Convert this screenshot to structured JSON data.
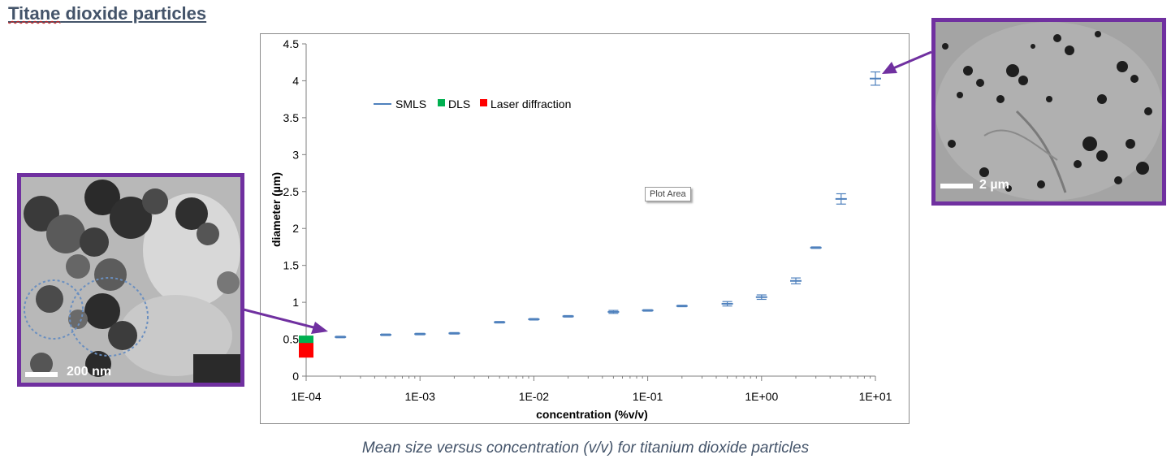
{
  "page": {
    "title_word1": "Titane",
    "title_word2": "dioxide particles",
    "caption": "Mean size versus concentration (v/v) for titanium dioxide particles",
    "tooltip": "Plot Area",
    "accent_color": "#7030a0"
  },
  "images": {
    "left_scale": "200 nm",
    "right_scale": "2 µm"
  },
  "chart_data": {
    "type": "scatter",
    "title": "",
    "xlabel": "concentration (%v/v)",
    "ylabel": "diameter (µm)",
    "x_scale": "log",
    "xlim": [
      0.0001,
      10
    ],
    "ylim": [
      0,
      4.5
    ],
    "x_ticks": [
      "1E-04",
      "1E-03",
      "1E-02",
      "1E-01",
      "1E+00",
      "1E+01"
    ],
    "y_ticks": [
      "0",
      "0.5",
      "1",
      "1.5",
      "2",
      "2.5",
      "3",
      "3.5",
      "4",
      "4.5"
    ],
    "grid": false,
    "legend_position": "top-left",
    "legend": [
      "SMLS",
      "DLS",
      "Laser diffraction"
    ],
    "series": [
      {
        "name": "SMLS",
        "color": "#4f81bd",
        "marker": "dash-errorbar",
        "points": [
          {
            "x": 0.0002,
            "y": 0.53,
            "err": 0.01
          },
          {
            "x": 0.0005,
            "y": 0.56,
            "err": 0.01
          },
          {
            "x": 0.001,
            "y": 0.57,
            "err": 0.01
          },
          {
            "x": 0.002,
            "y": 0.58,
            "err": 0.01
          },
          {
            "x": 0.005,
            "y": 0.73,
            "err": 0.01
          },
          {
            "x": 0.01,
            "y": 0.77,
            "err": 0.01
          },
          {
            "x": 0.02,
            "y": 0.81,
            "err": 0.01
          },
          {
            "x": 0.05,
            "y": 0.87,
            "err": 0.02
          },
          {
            "x": 0.1,
            "y": 0.89,
            "err": 0.01
          },
          {
            "x": 0.2,
            "y": 0.95,
            "err": 0.01
          },
          {
            "x": 0.5,
            "y": 0.98,
            "err": 0.03
          },
          {
            "x": 1,
            "y": 1.07,
            "err": 0.03
          },
          {
            "x": 2,
            "y": 1.29,
            "err": 0.04
          },
          {
            "x": 3,
            "y": 1.74,
            "err": 0.01
          },
          {
            "x": 5,
            "y": 2.4,
            "err": 0.07
          },
          {
            "x": 10,
            "y": 4.03,
            "err": 0.09
          }
        ]
      },
      {
        "name": "DLS",
        "color": "#00b050",
        "marker": "square",
        "points": [
          {
            "x": 0.0001,
            "y": 0.45
          }
        ]
      },
      {
        "name": "Laser diffraction",
        "color": "#ff0000",
        "marker": "square",
        "points": [
          {
            "x": 0.0001,
            "y": 0.35
          }
        ]
      }
    ]
  }
}
